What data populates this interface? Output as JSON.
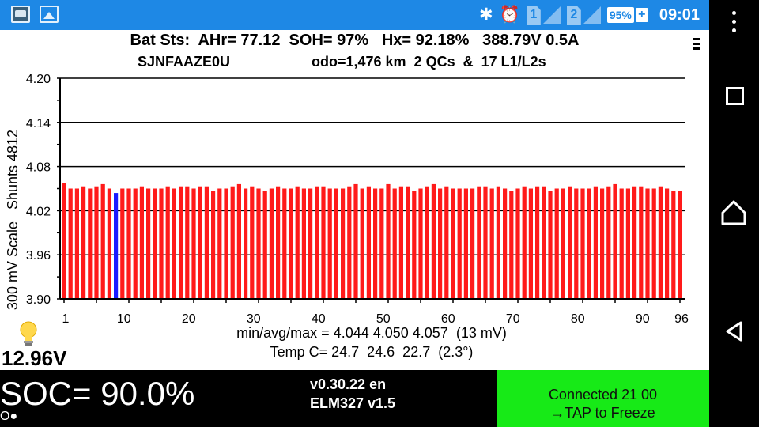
{
  "status_bar": {
    "icons": [
      "app-icon",
      "image-icon",
      "bluetooth-icon",
      "alarm-icon"
    ],
    "sim1": "1",
    "sim2": "2",
    "battery": "95%",
    "battery_plus": "+",
    "clock": "09:01",
    "color": "#1e88e5"
  },
  "header": {
    "line1": "Bat Sts:  AHr= 77.12  SOH= 97%   Hx= 92.18%   388.79V 0.5A",
    "vin": "SJNFAAZE0U",
    "line2": "odo=1,476 km  2 QCs  &  17 L1/L2s"
  },
  "chart_data": {
    "type": "bar",
    "ylabel": "300 mV Scale   Shunts 4812",
    "ylim": [
      3.9,
      4.2
    ],
    "yticks": [
      "4.20",
      "4.14",
      "4.08",
      "4.02",
      "3.96",
      "3.90"
    ],
    "xticks": [
      "1",
      "10",
      "20",
      "30",
      "40",
      "50",
      "60",
      "70",
      "80",
      "90",
      "96"
    ],
    "highlight_index": 9,
    "bar_color": "#ff1a1a",
    "highlight_color": "#1a1aff",
    "values": [
      4.057,
      4.05,
      4.05,
      4.053,
      4.05,
      4.053,
      4.056,
      4.05,
      4.044,
      4.05,
      4.05,
      4.05,
      4.053,
      4.05,
      4.05,
      4.05,
      4.053,
      4.05,
      4.053,
      4.053,
      4.05,
      4.053,
      4.053,
      4.047,
      4.05,
      4.05,
      4.053,
      4.056,
      4.05,
      4.053,
      4.05,
      4.047,
      4.05,
      4.053,
      4.05,
      4.05,
      4.053,
      4.05,
      4.05,
      4.053,
      4.053,
      4.05,
      4.05,
      4.05,
      4.053,
      4.056,
      4.05,
      4.053,
      4.05,
      4.05,
      4.056,
      4.05,
      4.053,
      4.053,
      4.047,
      4.05,
      4.053,
      4.056,
      4.05,
      4.053,
      4.05,
      4.05,
      4.05,
      4.05,
      4.053,
      4.053,
      4.05,
      4.053,
      4.05,
      4.047,
      4.05,
      4.053,
      4.05,
      4.053,
      4.053,
      4.047,
      4.05,
      4.05,
      4.053,
      4.05,
      4.05,
      4.05,
      4.053,
      4.05,
      4.053,
      4.056,
      4.05,
      4.05,
      4.053,
      4.053,
      4.05,
      4.05,
      4.053,
      4.05,
      4.047,
      4.047
    ]
  },
  "stats": {
    "minavgmax": "min/avg/max = 4.044 4.050 4.057  (13 mV)",
    "temp": "Temp C= 24.7  24.6  22.7  (2.3°)"
  },
  "aux_voltage": "12.96V",
  "bottom": {
    "soc": "SOC= 90.0%",
    "flag": "O●",
    "version": "v0.30.22 en",
    "adapter": "ELM327 v1.5",
    "connect_line1": "Connected 21 00",
    "connect_line2": "→TAP to Freeze",
    "connect_color": "#17ea17"
  }
}
